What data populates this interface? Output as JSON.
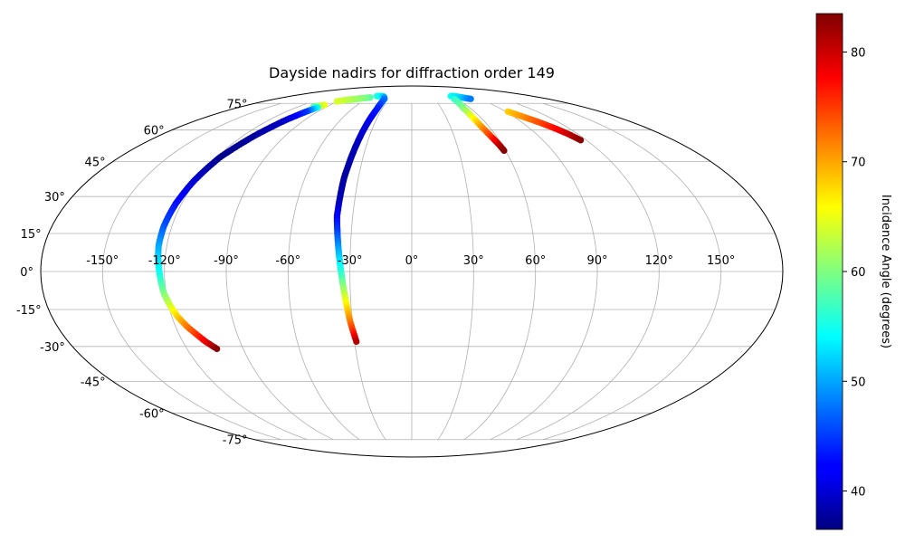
{
  "chart_data": {
    "type": "scatter",
    "projection": "mollweide",
    "title": "Dayside nadirs for diffraction order 149",
    "x_tick_labels": [
      "-150°",
      "-120°",
      "-90°",
      "-60°",
      "-30°",
      "0°",
      "30°",
      "60°",
      "90°",
      "120°",
      "150°"
    ],
    "x_tick_values": [
      -150,
      -120,
      -90,
      -60,
      -30,
      0,
      30,
      60,
      90,
      120,
      150
    ],
    "y_tick_labels": [
      "-75°",
      "-60°",
      "-45°",
      "-30°",
      "-15°",
      "0°",
      "15°",
      "30°",
      "45°",
      "60°",
      "75°"
    ],
    "y_tick_values": [
      -75,
      -60,
      -45,
      -30,
      -15,
      0,
      15,
      30,
      45,
      60,
      75
    ],
    "grid": true,
    "colorbar": {
      "label": "Incidence Angle (degrees)",
      "colormap": "jet",
      "range": [
        36.5,
        83.5
      ],
      "tick_values": [
        40,
        50,
        60,
        70,
        80
      ],
      "tick_labels": [
        "40",
        "50",
        "60",
        "70",
        "80"
      ]
    },
    "series": [
      {
        "points": [
          [
            -96,
            74,
            66
          ],
          [
            -100,
            73.5,
            63
          ],
          [
            -104,
            73,
            60
          ],
          [
            -98,
            72.5,
            55
          ],
          [
            -101,
            70,
            45
          ],
          [
            -106,
            65,
            40
          ],
          [
            -112,
            57,
            38
          ],
          [
            -118,
            47,
            37
          ],
          [
            -121,
            37,
            40
          ],
          [
            -123,
            27,
            43
          ],
          [
            -124,
            18,
            46
          ],
          [
            -124,
            10,
            50
          ],
          [
            -123,
            3,
            53
          ],
          [
            -122,
            -3,
            56
          ],
          [
            -121,
            -9,
            60
          ],
          [
            -119,
            -14,
            64
          ],
          [
            -117,
            -18,
            68
          ],
          [
            -114,
            -22,
            72
          ],
          [
            -111,
            -25,
            75
          ],
          [
            -108,
            -28,
            78
          ],
          [
            -104,
            -31,
            83
          ]
        ]
      },
      {
        "points": [
          [
            -58,
            79,
            58
          ],
          [
            -66,
            78.5,
            60
          ],
          [
            -73,
            78,
            61
          ],
          [
            -80,
            77.5,
            62
          ],
          [
            -86,
            77,
            63
          ],
          [
            -91,
            76.3,
            64
          ]
        ]
      },
      {
        "points": [
          [
            -52,
            80,
            56
          ],
          [
            -45,
            80,
            54
          ],
          [
            -40,
            79.5,
            52
          ],
          [
            -36,
            78,
            48
          ],
          [
            -35,
            72,
            44
          ],
          [
            -36,
            62,
            41
          ],
          [
            -37,
            50,
            39
          ],
          [
            -38,
            38,
            38
          ],
          [
            -38,
            28,
            39
          ],
          [
            -38,
            22,
            42
          ],
          [
            -37,
            16,
            45
          ],
          [
            -36,
            10,
            49
          ],
          [
            -35,
            4,
            53
          ],
          [
            -34,
            -2,
            57
          ],
          [
            -33,
            -8,
            62
          ],
          [
            -32,
            -14,
            67
          ],
          [
            -31,
            -20,
            72
          ],
          [
            -30,
            -24,
            76
          ],
          [
            -29,
            -28,
            81
          ]
        ]
      },
      {
        "points": [
          [
            58,
            80,
            55
          ],
          [
            62,
            80,
            54
          ],
          [
            66,
            79.6,
            53
          ],
          [
            70,
            79,
            52
          ],
          [
            74,
            78.5,
            50
          ],
          [
            78,
            78,
            48
          ]
        ]
      },
      {
        "points": [
          [
            56,
            78,
            56
          ],
          [
            53,
            72,
            60
          ],
          [
            53,
            67,
            65
          ],
          [
            54,
            62,
            70
          ],
          [
            56,
            57,
            75
          ],
          [
            58,
            53,
            80
          ],
          [
            59,
            50,
            83
          ]
        ]
      },
      {
        "points": [
          [
            92,
            70,
            68
          ],
          [
            98,
            67,
            71
          ],
          [
            104,
            64,
            74
          ],
          [
            109,
            61,
            77
          ],
          [
            113,
            58,
            80
          ],
          [
            116,
            55,
            83
          ]
        ]
      }
    ]
  }
}
